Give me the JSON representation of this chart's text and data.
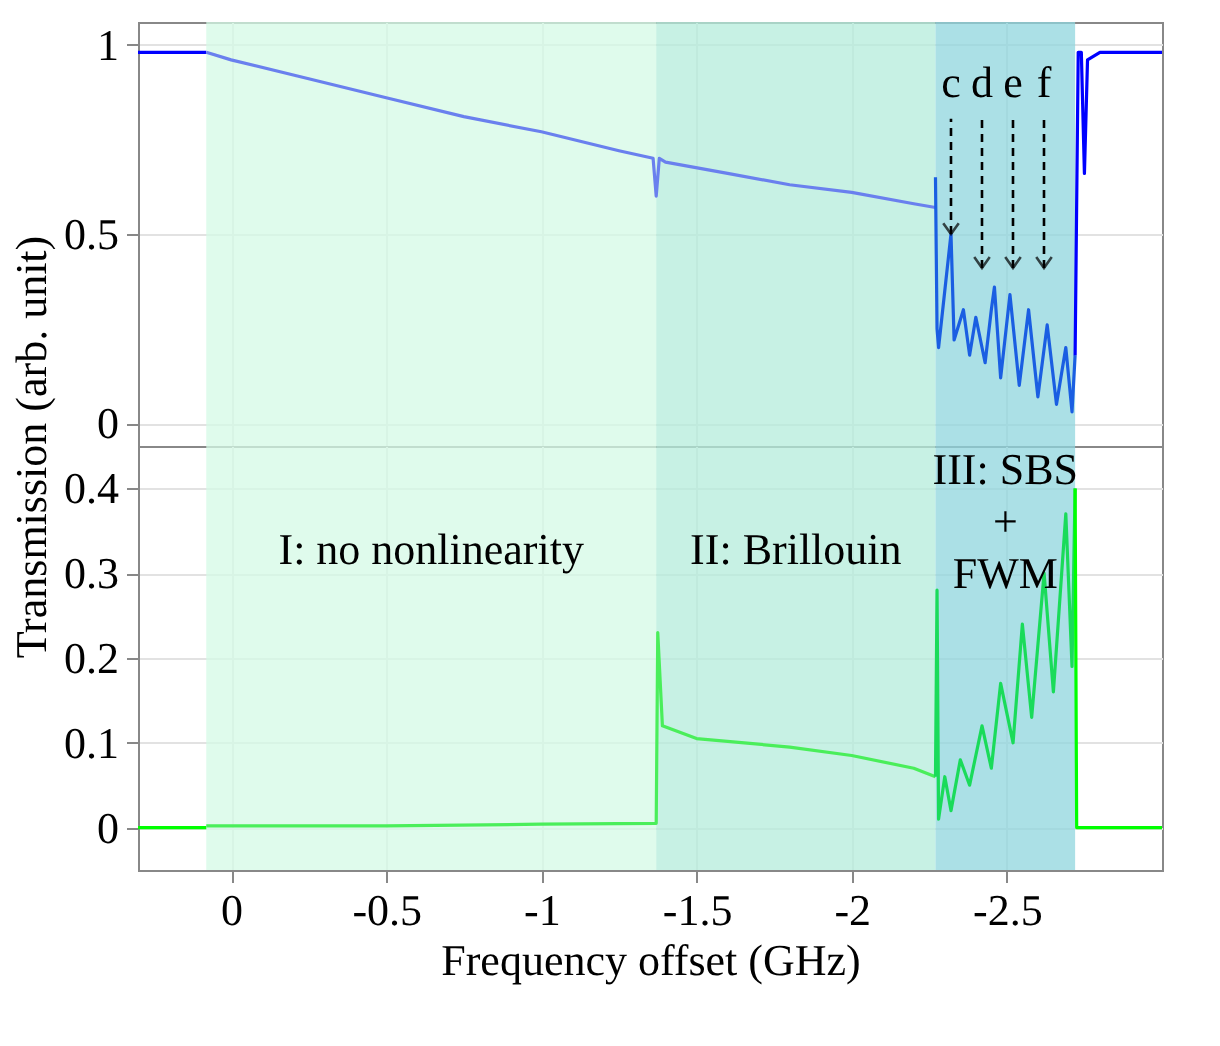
{
  "chart_data": [
    {
      "type": "line",
      "xlim": [
        0.3,
        -3.0
      ],
      "xticks": [
        0,
        -0.5,
        -1,
        -1.5,
        -2,
        -2.5
      ],
      "ylim": [
        -0.06,
        1.06
      ],
      "yticks": [
        0,
        0.5,
        1
      ],
      "tick_labels": "y",
      "grid": true,
      "marker": "none",
      "line_style": "solid",
      "legend": false,
      "bands": [
        {
          "axis": "x",
          "from": 0.08,
          "to": -1.37,
          "color": "#d4f9e6"
        },
        {
          "axis": "x",
          "from": -1.37,
          "to": -2.27,
          "color": "#b4ecdb"
        },
        {
          "axis": "x",
          "from": -2.27,
          "to": -2.72,
          "color": "#8fd6dd"
        }
      ],
      "annotations": [
        {
          "text": "c",
          "x": -2.32,
          "y": 0.5
        },
        "d",
        "e",
        "f"
      ],
      "series": [
        {
          "color": "#0000ff",
          "x": [
            0.3,
            0.2,
            0.1,
            0.08
          ],
          "values": [
            0.98,
            0.98,
            0.98,
            0.98
          ]
        },
        {
          "color": "#6a80ee",
          "x": [
            0.08,
            0,
            -0.25,
            -0.5,
            -0.75,
            -1.0,
            -1.25,
            -1.36,
            -1.37,
            -1.38,
            -1.4,
            -1.6,
            -1.8,
            -2.0,
            -2.2,
            -2.27
          ],
          "values": [
            0.98,
            0.96,
            0.91,
            0.86,
            0.81,
            0.77,
            0.72,
            0.7,
            0.6,
            0.7,
            0.69,
            0.66,
            0.63,
            0.61,
            0.58,
            0.57
          ]
        },
        {
          "color": "#1a5ee2",
          "x": [
            -2.27,
            -2.275,
            -2.28,
            -2.3,
            -2.32,
            -2.33,
            -2.36,
            -2.38,
            -2.4,
            -2.43,
            -2.45,
            -2.46,
            -2.48,
            -2.51,
            -2.54,
            -2.57,
            -2.6,
            -2.63,
            -2.66,
            -2.69,
            -2.71,
            -2.72
          ],
          "values": [
            0.65,
            0.25,
            0.2,
            0.35,
            0.5,
            0.22,
            0.3,
            0.18,
            0.28,
            0.16,
            0.3,
            0.36,
            0.12,
            0.34,
            0.1,
            0.3,
            0.07,
            0.26,
            0.05,
            0.2,
            0.03,
            0.18
          ]
        },
        {
          "color": "#0000ff",
          "x": [
            -2.72,
            -2.73,
            -2.74,
            -2.75,
            -2.76,
            -2.8,
            -2.9,
            -3.0
          ],
          "values": [
            0.18,
            0.98,
            0.98,
            0.66,
            0.96,
            0.98,
            0.98,
            0.98
          ]
        }
      ]
    },
    {
      "type": "line",
      "xlim": [
        0.3,
        -3.0
      ],
      "xticks": [
        0,
        -0.5,
        -1,
        -1.5,
        -2,
        -2.5
      ],
      "ylim": [
        -0.05,
        0.45
      ],
      "yticks": [
        0,
        0.1,
        0.2,
        0.3,
        0.4
      ],
      "xlabel": "Frequency offset (GHz)",
      "ylabel": "Transmission (arb. unit)",
      "grid": true,
      "marker": "none",
      "line_style": "solid",
      "legend": false,
      "bands": [
        {
          "axis": "x",
          "from": 0.08,
          "to": -1.37,
          "color": "#d4f9e6",
          "label": "I: no nonlinearity"
        },
        {
          "axis": "x",
          "from": -1.37,
          "to": -2.27,
          "color": "#b4ecdb",
          "label": "II: Brillouin"
        },
        {
          "axis": "x",
          "from": -2.27,
          "to": -2.72,
          "color": "#8fd6dd",
          "label": "III: SBS\n+\nFWM"
        }
      ],
      "series": [
        {
          "color": "#00ff00",
          "x": [
            0.3,
            0.2,
            0.1,
            0.08
          ],
          "values": [
            0.0,
            0.0,
            0.0,
            0.0
          ]
        },
        {
          "color": "#4aee5a",
          "x": [
            0.08,
            -0.5,
            -1.0,
            -1.37,
            -1.375,
            -1.39,
            -1.5,
            -1.8,
            -2.0,
            -2.2,
            -2.27
          ],
          "values": [
            0.002,
            0.002,
            0.004,
            0.005,
            0.23,
            0.12,
            0.105,
            0.095,
            0.085,
            0.07,
            0.06
          ]
        },
        {
          "color": "#1adb5a",
          "x": [
            -2.27,
            -2.275,
            -2.28,
            -2.3,
            -2.32,
            -2.35,
            -2.38,
            -2.42,
            -2.45,
            -2.48,
            -2.52,
            -2.55,
            -2.58,
            -2.62,
            -2.65,
            -2.69,
            -2.71,
            -2.72
          ],
          "values": [
            0.06,
            0.28,
            0.01,
            0.06,
            0.02,
            0.08,
            0.05,
            0.12,
            0.07,
            0.17,
            0.1,
            0.24,
            0.13,
            0.3,
            0.16,
            0.37,
            0.19,
            0.4
          ]
        },
        {
          "color": "#00ff00",
          "x": [
            -2.72,
            -2.725,
            -2.8,
            -2.9,
            -3.0
          ],
          "values": [
            0.4,
            0.0,
            0.0,
            0.0,
            0.0
          ]
        }
      ]
    }
  ]
}
